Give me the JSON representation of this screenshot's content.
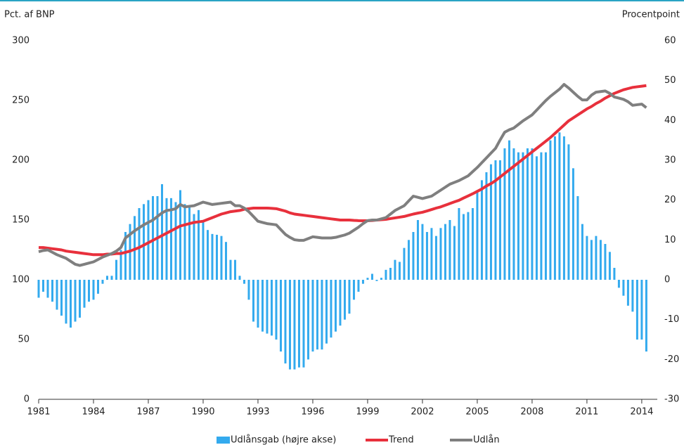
{
  "chart_data": {
    "type": "bar-line",
    "y_label": "Pct. af BNP",
    "y2_label": "Procentpoint",
    "xlim": [
      1981,
      2014.85
    ],
    "xticks": [
      1981,
      1984,
      1987,
      1990,
      1993,
      1996,
      1999,
      2002,
      2005,
      2008,
      2011,
      2014
    ],
    "ylim": [
      0,
      300
    ],
    "yticks": [
      0,
      50,
      100,
      150,
      200,
      250,
      300
    ],
    "y2lim": [
      -30,
      60
    ],
    "y2ticks": [
      -30,
      -20,
      -10,
      0,
      10,
      20,
      30,
      40,
      50,
      60
    ],
    "grid": false,
    "legend": "bottom",
    "x": [
      1981,
      1981.25,
      1981.5,
      1981.75,
      1982,
      1982.25,
      1982.5,
      1982.75,
      1983,
      1983.25,
      1983.5,
      1983.75,
      1984,
      1984.25,
      1984.5,
      1984.75,
      1985,
      1985.25,
      1985.5,
      1985.75,
      1986,
      1986.25,
      1986.5,
      1986.75,
      1987,
      1987.25,
      1987.5,
      1987.75,
      1988,
      1988.25,
      1988.5,
      1988.75,
      1989,
      1989.25,
      1989.5,
      1989.75,
      1990,
      1990.25,
      1990.5,
      1990.75,
      1991,
      1991.25,
      1991.5,
      1991.75,
      1992,
      1992.25,
      1992.5,
      1992.75,
      1993,
      1993.25,
      1993.5,
      1993.75,
      1994,
      1994.25,
      1994.5,
      1994.75,
      1995,
      1995.25,
      1995.5,
      1995.75,
      1996,
      1996.25,
      1996.5,
      1996.75,
      1997,
      1997.25,
      1997.5,
      1997.75,
      1998,
      1998.25,
      1998.5,
      1998.75,
      1999,
      1999.25,
      1999.5,
      1999.75,
      2000,
      2000.25,
      2000.5,
      2000.75,
      2001,
      2001.25,
      2001.5,
      2001.75,
      2002,
      2002.25,
      2002.5,
      2002.75,
      2003,
      2003.25,
      2003.5,
      2003.75,
      2004,
      2004.25,
      2004.5,
      2004.75,
      2005,
      2005.25,
      2005.5,
      2005.75,
      2006,
      2006.25,
      2006.5,
      2006.75,
      2007,
      2007.25,
      2007.5,
      2007.75,
      2008,
      2008.25,
      2008.5,
      2008.75,
      2009,
      2009.25,
      2009.5,
      2009.75,
      2010,
      2010.25,
      2010.5,
      2010.75,
      2011,
      2011.25,
      2011.5,
      2011.75,
      2012,
      2012.25,
      2012.5,
      2012.75,
      2013,
      2013.25,
      2013.5,
      2013.75,
      2014,
      2014.25
    ],
    "series": [
      {
        "name": "Udlånsgab (højre akse)",
        "type": "bar",
        "axis": "y2",
        "color": "#33aaee",
        "values": [
          -4.5,
          -3,
          -4.5,
          -5.5,
          -7.5,
          -9,
          -11,
          -12,
          -10.5,
          -9.5,
          -7,
          -5.5,
          -5,
          -3.5,
          -1,
          1,
          1,
          5,
          7.5,
          12,
          14,
          16,
          18,
          19,
          20,
          21,
          21,
          24,
          20.5,
          20.5,
          19.5,
          22.5,
          19,
          18.5,
          16.5,
          17.5,
          15,
          12.5,
          11.5,
          11.3,
          11,
          9.5,
          5,
          5,
          1,
          -1,
          -5,
          -10.5,
          -12,
          -13,
          -13.5,
          -14,
          -15,
          -18,
          -21,
          -22.5,
          -22.5,
          -22,
          -22,
          -20,
          -18,
          -17.5,
          -17.5,
          -16,
          -14.5,
          -13,
          -11.5,
          -10,
          -8.5,
          -5,
          -3,
          -1,
          0.5,
          1.5,
          -0.3,
          0.5,
          2.5,
          3,
          5,
          4.5,
          8,
          10,
          12,
          15,
          14,
          12,
          13,
          11,
          13,
          14,
          15,
          13.5,
          18,
          16.5,
          17,
          18,
          22,
          25,
          27,
          29,
          30,
          30,
          33,
          35,
          33,
          32,
          32,
          33,
          33,
          31,
          32,
          32,
          35,
          36,
          37,
          36,
          34,
          28,
          21,
          14,
          11,
          10,
          11,
          10,
          9,
          7,
          3,
          -2,
          -4,
          -6.5,
          -8,
          -15,
          -15,
          -18
        ]
      },
      {
        "name": "Trend",
        "type": "line",
        "color": "#e8303c",
        "values": [
          127,
          127,
          126.5,
          126,
          125.5,
          125,
          124,
          123.5,
          123,
          122.5,
          122,
          121.5,
          121,
          121,
          121,
          121.5,
          121.5,
          122,
          122,
          123,
          124,
          125.5,
          127,
          129,
          131,
          133,
          135,
          137,
          139,
          141,
          143,
          145,
          146,
          147,
          148,
          148.5,
          149,
          150.5,
          152,
          153.5,
          155,
          156,
          157,
          157.5,
          158,
          159,
          159.5,
          160,
          160,
          160,
          160,
          159.8,
          159.5,
          158.5,
          157.5,
          156,
          155,
          154.5,
          154,
          153.5,
          153,
          152.5,
          152,
          151.5,
          151,
          150.5,
          150,
          150,
          150,
          149.7,
          149.5,
          149.4,
          149.4,
          149.6,
          150,
          150.3,
          150.6,
          151.2,
          151.8,
          152.4,
          153,
          154,
          155,
          155.8,
          156.5,
          157.6,
          158.8,
          160,
          161,
          162.4,
          163.8,
          165.2,
          166.5,
          168.4,
          170.2,
          172,
          174,
          176,
          178.5,
          180.5,
          183,
          186,
          189,
          192,
          195,
          198,
          201,
          204,
          207,
          210,
          213,
          216,
          219,
          222.5,
          226,
          229.5,
          233,
          235.5,
          238,
          240.5,
          243,
          245,
          247.5,
          249.5,
          252,
          254,
          256,
          257.5,
          259,
          260,
          261,
          261.5,
          262,
          262.5
        ]
      },
      {
        "name": "Udlån",
        "type": "line",
        "color": "#7f7f7f",
        "values": [
          123.5,
          124.5,
          125,
          123,
          121,
          119.5,
          118,
          115.5,
          113,
          112,
          113,
          114,
          115,
          117,
          119,
          120.5,
          122,
          124,
          127,
          135,
          138,
          141,
          143.5,
          146,
          148,
          150,
          153,
          156,
          158,
          158.5,
          159.5,
          163,
          161,
          161.5,
          162,
          163.5,
          165,
          164,
          163,
          163.5,
          164,
          164.5,
          165,
          162,
          162,
          160,
          157,
          153,
          149,
          148,
          147,
          146.5,
          146,
          142,
          138,
          135.5,
          133.5,
          133,
          133,
          134.5,
          136,
          135.5,
          135,
          135,
          135,
          135.5,
          136.5,
          137.5,
          139,
          141.5,
          144,
          147,
          149.5,
          150,
          150,
          151,
          152,
          155,
          158,
          160,
          162,
          166,
          170,
          169,
          168,
          169,
          170,
          172.5,
          175,
          177.5,
          180,
          181.5,
          183,
          185,
          187,
          190.5,
          194,
          198,
          202,
          206,
          210,
          217,
          223.5,
          225.5,
          227,
          230,
          233,
          235.5,
          238,
          242,
          246,
          250,
          253.5,
          256.5,
          259.5,
          263.5,
          260.5,
          257,
          253.5,
          250.5,
          250.5,
          254.5,
          257,
          257.5,
          258,
          256,
          253,
          252,
          251,
          249,
          246,
          246.5,
          247,
          244
        ]
      }
    ]
  }
}
